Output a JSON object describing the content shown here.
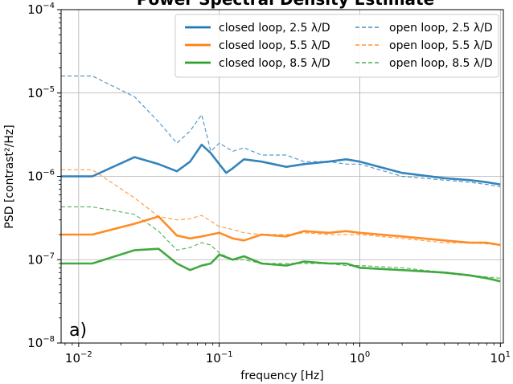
{
  "chart_data": {
    "type": "line",
    "title": "Power Spectral Density Estimate",
    "panel_label": "a)",
    "xlabel": "frequency [Hz]",
    "ylabel": "PSD [contrast²/Hz]",
    "x_scale": "log",
    "y_scale": "log",
    "xlim": [
      0.0075,
      10.5
    ],
    "ylim": [
      1e-08,
      0.0001
    ],
    "x_ticks": [
      {
        "value": 0.01,
        "base": "10",
        "exp": "−2"
      },
      {
        "value": 0.1,
        "base": "10",
        "exp": "−1"
      },
      {
        "value": 1,
        "base": "10",
        "exp": "0"
      },
      {
        "value": 10,
        "base": "10",
        "exp": "1"
      }
    ],
    "y_ticks": [
      {
        "value": 1e-08,
        "base": "10",
        "exp": "−8"
      },
      {
        "value": 1e-07,
        "base": "10",
        "exp": "−7"
      },
      {
        "value": 1e-06,
        "base": "10",
        "exp": "−6"
      },
      {
        "value": 1e-05,
        "base": "10",
        "exp": "−5"
      },
      {
        "value": 0.0001,
        "base": "10",
        "exp": "−4"
      }
    ],
    "grid": true,
    "legend_position": "top-right",
    "series": [
      {
        "name": "closed loop, 2.5 λ/D",
        "color": "#1f77b4",
        "style": "solid",
        "x": [
          0.0075,
          0.0125,
          0.025,
          0.037,
          0.05,
          0.062,
          0.075,
          0.087,
          0.1,
          0.112,
          0.125,
          0.15,
          0.2,
          0.3,
          0.4,
          0.6,
          0.8,
          1,
          2,
          4,
          6,
          8,
          10
        ],
        "y": [
          1e-06,
          1e-06,
          1.7e-06,
          1.4e-06,
          1.15e-06,
          1.5e-06,
          2.4e-06,
          1.9e-06,
          1.4e-06,
          1.1e-06,
          1.25e-06,
          1.6e-06,
          1.5e-06,
          1.3e-06,
          1.4e-06,
          1.5e-06,
          1.6e-06,
          1.5e-06,
          1.1e-06,
          9.5e-07,
          9e-07,
          8.5e-07,
          8e-07
        ]
      },
      {
        "name": "closed loop, 5.5 λ/D",
        "color": "#ff7f0e",
        "style": "solid",
        "x": [
          0.0075,
          0.0125,
          0.025,
          0.037,
          0.05,
          0.062,
          0.075,
          0.087,
          0.1,
          0.125,
          0.15,
          0.2,
          0.3,
          0.4,
          0.6,
          0.8,
          1,
          2,
          4,
          6,
          8,
          10
        ],
        "y": [
          2e-07,
          2e-07,
          2.7e-07,
          3.3e-07,
          1.95e-07,
          1.8e-07,
          1.9e-07,
          2e-07,
          2.1e-07,
          1.8e-07,
          1.7e-07,
          2e-07,
          1.9e-07,
          2.2e-07,
          2.1e-07,
          2.2e-07,
          2.1e-07,
          1.9e-07,
          1.7e-07,
          1.6e-07,
          1.6e-07,
          1.5e-07
        ]
      },
      {
        "name": "closed loop, 8.5 λ/D",
        "color": "#2ca02c",
        "style": "solid",
        "x": [
          0.0075,
          0.0125,
          0.025,
          0.037,
          0.05,
          0.062,
          0.075,
          0.087,
          0.1,
          0.125,
          0.15,
          0.2,
          0.3,
          0.4,
          0.6,
          0.8,
          1,
          2,
          4,
          6,
          8,
          10
        ],
        "y": [
          9e-08,
          9e-08,
          1.3e-07,
          1.35e-07,
          9e-08,
          7.5e-08,
          8.5e-08,
          9e-08,
          1.15e-07,
          1e-07,
          1.1e-07,
          9e-08,
          8.5e-08,
          9.5e-08,
          9e-08,
          9e-08,
          8e-08,
          7.5e-08,
          7e-08,
          6.5e-08,
          6e-08,
          5.5e-08
        ]
      },
      {
        "name": "open loop, 2.5 λ/D",
        "color": "#1f77b4",
        "style": "dashed",
        "x": [
          0.0075,
          0.0125,
          0.025,
          0.037,
          0.05,
          0.062,
          0.075,
          0.087,
          0.1,
          0.125,
          0.15,
          0.2,
          0.3,
          0.4,
          0.6,
          0.8,
          1,
          2,
          4,
          6,
          8,
          10
        ],
        "y": [
          1.6e-05,
          1.6e-05,
          9e-06,
          4.5e-06,
          2.5e-06,
          3.5e-06,
          5.5e-06,
          2e-06,
          2.5e-06,
          2e-06,
          2.2e-06,
          1.8e-06,
          1.8e-06,
          1.5e-06,
          1.5e-06,
          1.4e-06,
          1.4e-06,
          1e-06,
          9e-07,
          8.5e-07,
          8e-07,
          7.5e-07
        ]
      },
      {
        "name": "open loop, 5.5 λ/D",
        "color": "#ff7f0e",
        "style": "dashed",
        "x": [
          0.0075,
          0.0125,
          0.025,
          0.037,
          0.05,
          0.062,
          0.075,
          0.087,
          0.1,
          0.125,
          0.15,
          0.2,
          0.3,
          0.4,
          0.6,
          0.8,
          1,
          2,
          4,
          6,
          8,
          10
        ],
        "y": [
          1.2e-06,
          1.2e-06,
          5.5e-07,
          3.3e-07,
          3e-07,
          3.1e-07,
          3.4e-07,
          2.9e-07,
          2.5e-07,
          2.3e-07,
          2.1e-07,
          2e-07,
          2e-07,
          2.1e-07,
          2e-07,
          2e-07,
          2e-07,
          1.8e-07,
          1.6e-07,
          1.6e-07,
          1.55e-07,
          1.5e-07
        ]
      },
      {
        "name": "open loop, 8.5 λ/D",
        "color": "#2ca02c",
        "style": "dashed",
        "x": [
          0.0075,
          0.0125,
          0.025,
          0.037,
          0.05,
          0.062,
          0.075,
          0.087,
          0.1,
          0.125,
          0.15,
          0.2,
          0.3,
          0.4,
          0.6,
          0.8,
          1,
          2,
          4,
          6,
          8,
          10
        ],
        "y": [
          4.3e-07,
          4.3e-07,
          3.5e-07,
          2.2e-07,
          1.3e-07,
          1.4e-07,
          1.6e-07,
          1.5e-07,
          1.2e-07,
          1e-07,
          1e-07,
          9e-08,
          9e-08,
          9e-08,
          9e-08,
          8.5e-08,
          8.5e-08,
          8e-08,
          7e-08,
          6.5e-08,
          6.2e-08,
          6e-08
        ]
      }
    ]
  }
}
